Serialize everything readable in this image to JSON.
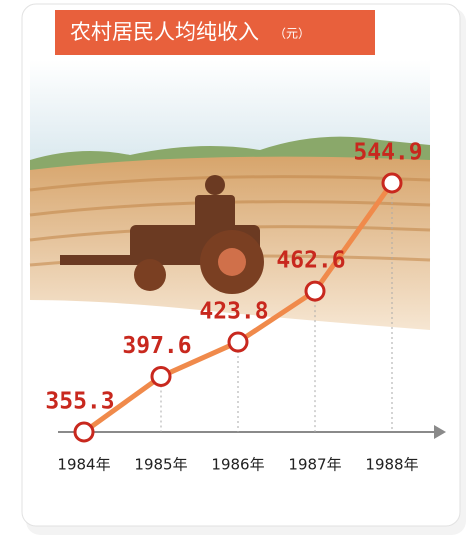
{
  "chart_data": {
    "type": "line",
    "title": "农村居民人均纯收入",
    "unit": "（元）",
    "categories": [
      "1984年",
      "1985年",
      "1986年",
      "1987年",
      "1988年"
    ],
    "values": [
      355.3,
      397.6,
      423.8,
      462.6,
      544.9
    ],
    "color": "#f08a4b",
    "marker_color": "#c8281e",
    "label_color": "#c8281e"
  }
}
